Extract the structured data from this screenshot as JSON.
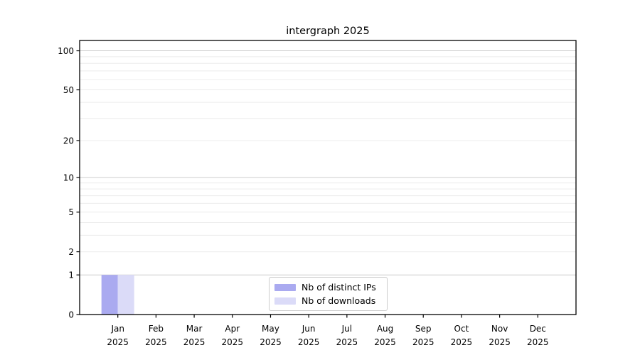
{
  "figure": {
    "background": "#ffffff"
  },
  "chart_data": {
    "type": "bar",
    "title": "intergraph 2025",
    "x_axis": {
      "months": [
        "Jan",
        "Feb",
        "Mar",
        "Apr",
        "May",
        "Jun",
        "Jul",
        "Aug",
        "Sep",
        "Oct",
        "Nov",
        "Dec"
      ],
      "year": "2025"
    },
    "y_axis": {
      "scale": "log1p",
      "max": 120,
      "tick_values": [
        0,
        1,
        2,
        5,
        10,
        20,
        50,
        100
      ],
      "tick_labels": [
        "0",
        "1",
        "2",
        "5",
        "10",
        "20",
        "50",
        "100"
      ],
      "major_gridlines": [
        1,
        10,
        100
      ],
      "minor_gridlines": [
        2,
        3,
        4,
        5,
        6,
        7,
        8,
        9,
        20,
        30,
        40,
        50,
        60,
        70,
        80,
        90
      ]
    },
    "series": [
      {
        "name": "Nb of distinct IPs",
        "color": "#aaaaf0",
        "values": [
          1,
          0,
          0,
          0,
          0,
          0,
          0,
          0,
          0,
          0,
          0,
          0
        ]
      },
      {
        "name": "Nb of downloads",
        "color": "#dbdbf8",
        "values": [
          1,
          0,
          0,
          0,
          0,
          0,
          0,
          0,
          0,
          0,
          0,
          0
        ]
      }
    ],
    "legend": {
      "location": "lower center",
      "entries": [
        "Nb of distinct IPs",
        "Nb of downloads"
      ]
    },
    "colors": {
      "grid_major": "#cccccc",
      "grid_minor": "#ececec",
      "spine": "#000000",
      "tick_text": "#000000"
    }
  }
}
